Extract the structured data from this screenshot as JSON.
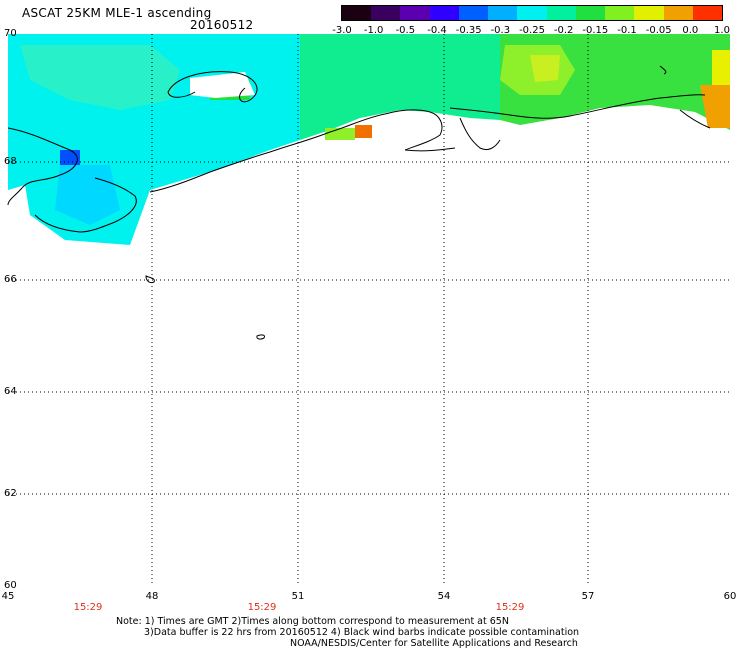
{
  "title": "ASCAT 25KM MLE-1 ascending",
  "date": "20160512",
  "colorbar": {
    "tick_labels": [
      "-3.0",
      "-1.0",
      "-0.5",
      "-0.4",
      "-0.35",
      "-0.3",
      "-0.25",
      "-0.2",
      "-0.15",
      "-0.1",
      "-0.05",
      "0.0",
      "1.0"
    ],
    "colors": [
      "#1a0010",
      "#3a0060",
      "#5a00b0",
      "#3000ff",
      "#0060ff",
      "#00b0ff",
      "#00f0f0",
      "#00f0a0",
      "#20e040",
      "#80f020",
      "#e0f000",
      "#f0a000",
      "#ff3000"
    ]
  },
  "map": {
    "lat_labels": [
      "70",
      "68",
      "66",
      "64",
      "62",
      "60"
    ],
    "lon_labels": [
      "45",
      "48",
      "51",
      "54",
      "57",
      "60"
    ],
    "time_labels": [
      "15:29",
      "15:29",
      "15:29"
    ],
    "coast_color": "#000000",
    "grid_style": "dotted"
  },
  "notes": {
    "line1": "Note: 1) Times are GMT 2)Times along bottom correspond to measurement at 65N",
    "line2": "3)Data buffer is 22 hrs from 20160512 4) Black wind barbs indicate possible contamination",
    "line3": "NOAA/NESDIS/Center for Satellite Applications and Research"
  }
}
